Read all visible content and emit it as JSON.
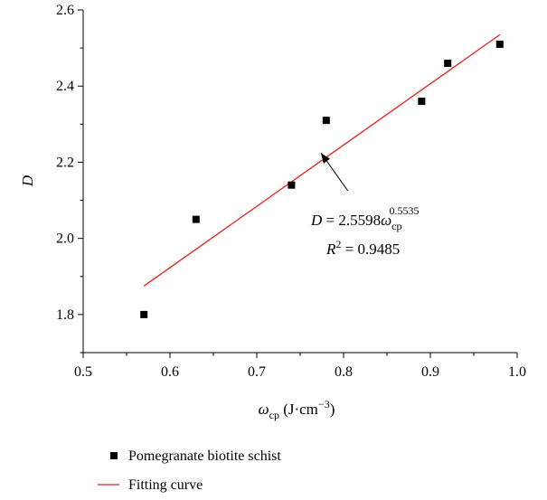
{
  "chart_data": {
    "type": "scatter",
    "xlim": [
      0.5,
      1.0
    ],
    "ylim": [
      1.7,
      2.6
    ],
    "x_ticks": [
      "0.5",
      "0.6",
      "0.7",
      "0.8",
      "0.9",
      "1.0"
    ],
    "y_ticks": [
      "1.8",
      "2.0",
      "2.2",
      "2.4",
      "2.6"
    ],
    "xlabel": {
      "symbol": "ω",
      "sub": "cp",
      "unit_open": " (J·cm",
      "unit_sup": "−3",
      "unit_close": ")"
    },
    "ylabel": "D",
    "series": [
      {
        "name": "Pomegranate biotite schist",
        "kind": "scatter",
        "color": "#000000",
        "x": [
          0.57,
          0.63,
          0.74,
          0.78,
          0.89,
          0.92,
          0.98
        ],
        "y": [
          1.8,
          2.05,
          2.14,
          2.31,
          2.36,
          2.46,
          2.51
        ]
      },
      {
        "name": "Fitting curve",
        "kind": "line",
        "color": "#e0201b",
        "x": [
          0.57,
          0.98
        ],
        "y": [
          1.875,
          2.535
        ]
      }
    ],
    "annotation": {
      "eq_lhs": "D",
      "eq_mid": " = 2.5598",
      "eq_omega": "ω",
      "eq_sub": "cp",
      "eq_sup": "0.5535",
      "r2_lhs": "R",
      "r2_sup": "2",
      "r2_rhs": " = 0.9485",
      "arrow_from": [
        0.805,
        2.125
      ],
      "arrow_to": [
        0.774,
        2.224
      ]
    },
    "legend": {
      "placement": "bottom-left"
    }
  }
}
